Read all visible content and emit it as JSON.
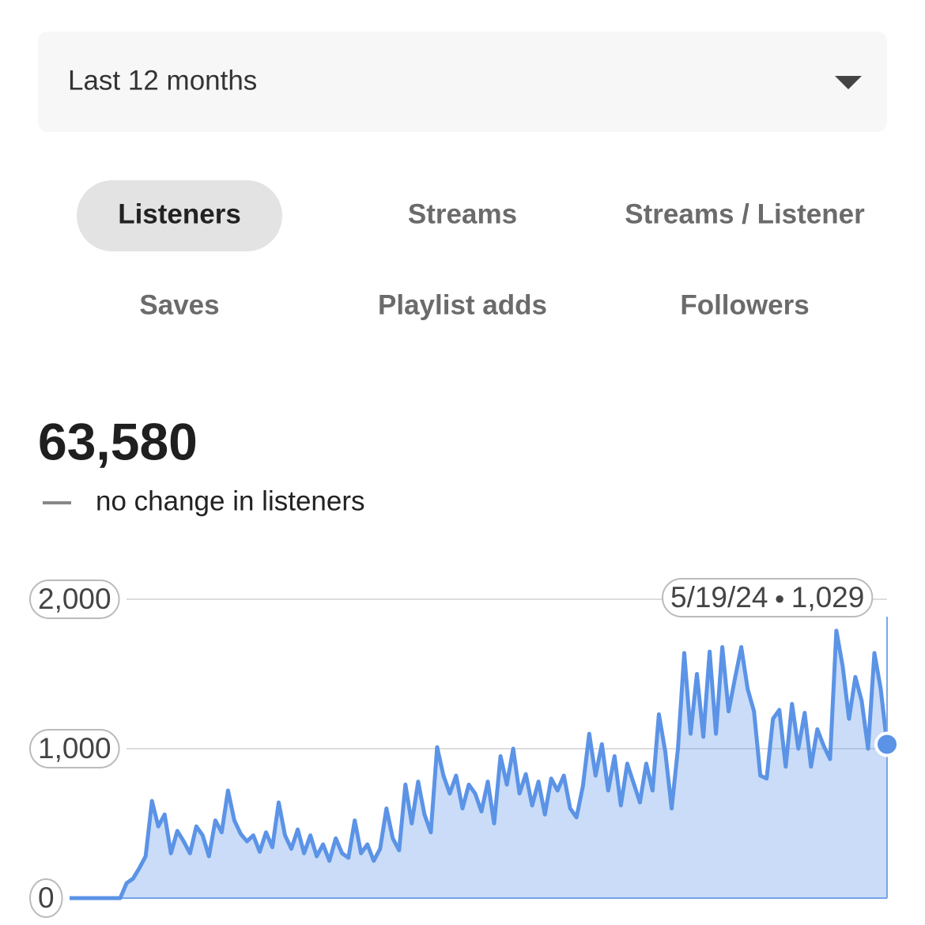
{
  "dropdown": {
    "label": "Last 12 months"
  },
  "tabs": [
    {
      "label": "Listeners",
      "selected": true
    },
    {
      "label": "Streams",
      "selected": false
    },
    {
      "label": "Streams / Listener",
      "selected": false
    },
    {
      "label": "Saves",
      "selected": false
    },
    {
      "label": "Playlist adds",
      "selected": false
    },
    {
      "label": "Followers",
      "selected": false
    }
  ],
  "summary": {
    "total": "63,580",
    "change": "no change in listeners"
  },
  "chart_data": {
    "type": "line",
    "series": [
      {
        "name": "Listeners",
        "color": "#5b93e6",
        "values": [
          0,
          0,
          0,
          0,
          0,
          0,
          0,
          0,
          0,
          100,
          130,
          200,
          280,
          650,
          480,
          560,
          300,
          450,
          380,
          300,
          480,
          420,
          280,
          520,
          440,
          720,
          520,
          430,
          380,
          420,
          310,
          440,
          340,
          640,
          420,
          330,
          460,
          300,
          420,
          280,
          360,
          250,
          400,
          300,
          270,
          520,
          300,
          360,
          250,
          330,
          600,
          400,
          320,
          760,
          500,
          780,
          560,
          440,
          1010,
          820,
          700,
          820,
          600,
          760,
          700,
          580,
          780,
          500,
          950,
          760,
          1000,
          700,
          830,
          620,
          780,
          560,
          800,
          720,
          820,
          600,
          540,
          750,
          1100,
          820,
          1030,
          720,
          950,
          620,
          900,
          770,
          640,
          900,
          720,
          1230,
          980,
          600,
          1000,
          1640,
          1100,
          1500,
          1080,
          1650,
          1100,
          1680,
          1250,
          1470,
          1680,
          1400,
          1250,
          820,
          800,
          1200,
          1260,
          880,
          1300,
          1000,
          1240,
          880,
          1130,
          1020,
          930,
          1790,
          1550,
          1200,
          1480,
          1320,
          1000,
          1640,
          1400,
          1029
        ]
      }
    ],
    "ylim": [
      0,
      2000
    ],
    "yticks": [
      0,
      {
        "value": 1000,
        "label": "1,000"
      },
      {
        "value": 2000,
        "label": "2,000"
      }
    ],
    "grid": true,
    "tooltip": {
      "date": "5/19/24",
      "value": 1029,
      "label": "1,029"
    }
  }
}
